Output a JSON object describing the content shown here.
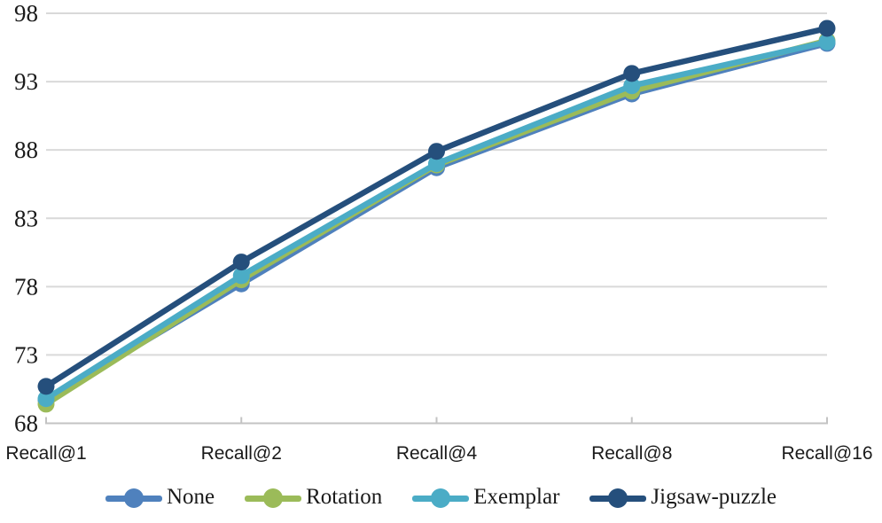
{
  "chart_data": {
    "type": "line",
    "title": "",
    "xlabel": "",
    "ylabel": "",
    "categories": [
      "Recall@1",
      "Recall@2",
      "Recall@4",
      "Recall@8",
      "Recall@16"
    ],
    "series": [
      {
        "name": "None",
        "color": "#4F81BD",
        "values": [
          69.7,
          78.2,
          86.7,
          92.1,
          95.8
        ]
      },
      {
        "name": "Rotation",
        "color": "#9BBB59",
        "values": [
          69.4,
          78.5,
          86.9,
          92.3,
          96.0
        ]
      },
      {
        "name": "Exemplar",
        "color": "#4BACC6",
        "values": [
          69.8,
          78.8,
          87.0,
          92.7,
          95.9
        ]
      },
      {
        "name": "Jigsaw-puzzle",
        "color": "#254F7C",
        "values": [
          70.7,
          79.8,
          87.9,
          93.6,
          96.9
        ]
      }
    ],
    "ylim": [
      68,
      98
    ],
    "y_ticks": [
      68,
      73,
      78,
      83,
      88,
      93,
      98
    ],
    "grid": "horizontal",
    "gridline_color": "#d9d9d9",
    "axis_line_color": "#c3c3c3",
    "legend_position": "bottom"
  }
}
